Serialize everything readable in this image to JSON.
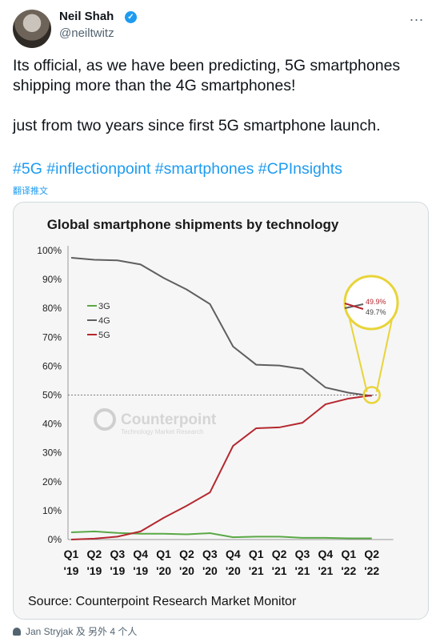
{
  "author": {
    "name": "Neil Shah",
    "handle": "@neiltwitz"
  },
  "more_icon": "...",
  "verified_icon": "✓",
  "tweet": {
    "line1": "Its official, as we have been predicting, 5G smartphones shipping more than the 4G smartphones!",
    "line2": "just from two years since first 5G smartphone launch.",
    "hashtags": "#5G #inflectionpoint #smartphones #CPInsights",
    "translate_label": "翻译推文"
  },
  "colors": {
    "g3": "#5aa845",
    "g4": "#5f5f5f",
    "g5": "#b5282f",
    "highlight": "#e8d43a",
    "link": "#1d9bf0"
  },
  "chart_data": {
    "type": "line",
    "title": "Global smartphone shipments by technology",
    "source": "Source: Counterpoint Research Market Monitor",
    "watermark": "Counterpoint",
    "watermark_sub": "Technology Market Research",
    "categories": [
      "Q1 '19",
      "Q2 '19",
      "Q3 '19",
      "Q4 '19",
      "Q1 '20",
      "Q2 '20",
      "Q3 '20",
      "Q4 '20",
      "Q1 '21",
      "Q2 '21",
      "Q3 '21",
      "Q4 '21",
      "Q1 '22",
      "Q2 '22"
    ],
    "x_quarters": [
      "Q1",
      "Q2",
      "Q3",
      "Q4",
      "Q1",
      "Q2",
      "Q3",
      "Q4",
      "Q1",
      "Q2",
      "Q3",
      "Q4",
      "Q1",
      "Q2"
    ],
    "x_years": [
      "'19",
      "'19",
      "'19",
      "'19",
      "'20",
      "'20",
      "'20",
      "'20",
      "'21",
      "'21",
      "'21",
      "'21",
      "'22",
      "'22"
    ],
    "ylim": [
      0,
      100
    ],
    "y_ticks": [
      "0%",
      "10%",
      "20%",
      "30%",
      "40%",
      "50%",
      "60%",
      "70%",
      "80%",
      "90%",
      "100%"
    ],
    "reference_line": 50,
    "series": [
      {
        "name": "3G",
        "values": [
          2.5,
          2.8,
          2.3,
          2.0,
          2.0,
          1.8,
          2.2,
          0.8,
          1.0,
          1.0,
          0.6,
          0.6,
          0.4,
          0.4
        ]
      },
      {
        "name": "4G",
        "values": [
          97.5,
          96.8,
          96.6,
          95.2,
          90.5,
          86.5,
          81.5,
          66.8,
          60.5,
          60.2,
          59.0,
          52.6,
          50.8,
          49.7
        ]
      },
      {
        "name": "5G",
        "values": [
          0.0,
          0.3,
          1.0,
          2.8,
          7.5,
          11.7,
          16.3,
          32.4,
          38.5,
          38.8,
          40.4,
          46.8,
          48.8,
          49.9
        ]
      }
    ],
    "callout": {
      "v5g": "49.9%",
      "v4g": "49.7%"
    }
  },
  "footer": {
    "text": "Jan Stryjak 及 另外 4 个人"
  }
}
